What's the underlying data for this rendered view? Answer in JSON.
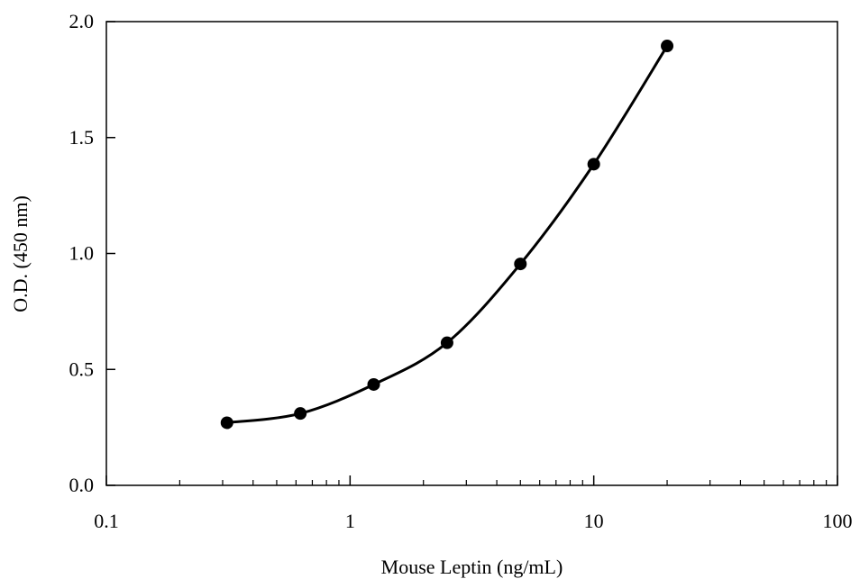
{
  "chart_data": {
    "type": "scatter",
    "title": "",
    "xlabel": "Mouse Leptin (ng/mL)",
    "ylabel": "O.D. (450 nm)",
    "xscale": "log",
    "xlim": [
      0.1,
      100
    ],
    "ylim": [
      0.0,
      2.0
    ],
    "x_ticks": [
      0.1,
      1,
      10,
      100
    ],
    "x_tick_labels": [
      "0.1",
      "1",
      "10",
      "100"
    ],
    "y_ticks": [
      0.0,
      0.5,
      1.0,
      1.5,
      2.0
    ],
    "y_tick_labels": [
      "0.0",
      "0.5",
      "1.0",
      "1.5",
      "2.0"
    ],
    "grid": false,
    "legend": "none",
    "series": [
      {
        "marker": "circle",
        "line": "smooth",
        "color": "#000000",
        "x": [
          0.3125,
          0.625,
          1.25,
          2.5,
          5,
          10,
          20
        ],
        "y": [
          0.27,
          0.31,
          0.435,
          0.615,
          0.955,
          1.385,
          1.895
        ]
      }
    ]
  }
}
